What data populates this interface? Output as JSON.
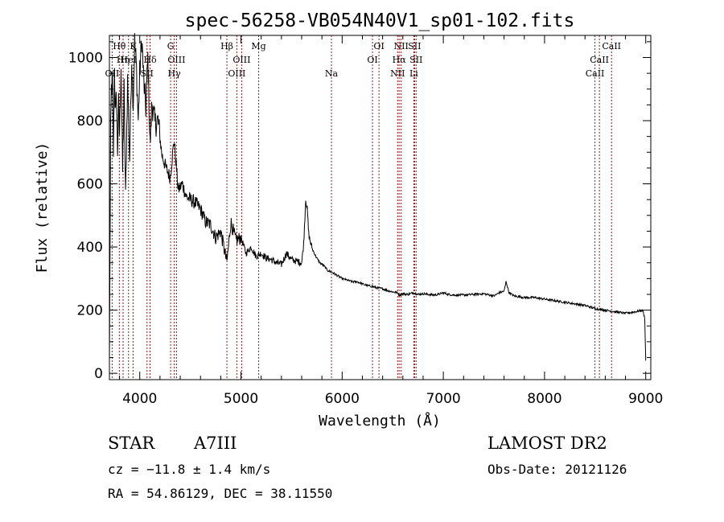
{
  "chart_data": {
    "type": "line",
    "title": "spec-56258-VB054N40V1_sp01-102.fits",
    "xlabel": "Wavelength (Å)",
    "ylabel": "Flux (relative)",
    "xlim": [
      3700,
      9050
    ],
    "ylim": [
      -20,
      1070
    ],
    "xticks": [
      4000,
      5000,
      6000,
      7000,
      8000,
      9000
    ],
    "yticks": [
      0,
      200,
      400,
      600,
      800,
      1000
    ],
    "xtick_labels": [
      "4000",
      "5000",
      "6000",
      "7000",
      "8000",
      "9000"
    ],
    "ytick_labels": [
      "0",
      "200",
      "400",
      "600",
      "800",
      "1000"
    ],
    "grid": false,
    "series": [
      {
        "name": "spectrum",
        "x": [
          3700,
          3705,
          3712,
          3720,
          3730,
          3740,
          3750,
          3760,
          3770,
          3780,
          3790,
          3800,
          3815,
          3830,
          3845,
          3860,
          3880,
          3900,
          3920,
          3935,
          3950,
          3968,
          3985,
          4000,
          4020,
          4040,
          4060,
          4080,
          4102,
          4120,
          4150,
          4180,
          4220,
          4260,
          4300,
          4340,
          4380,
          4420,
          4460,
          4500,
          4550,
          4600,
          4650,
          4700,
          4750,
          4800,
          4861,
          4900,
          4950,
          5000,
          5050,
          5100,
          5150,
          5200,
          5250,
          5300,
          5350,
          5400,
          5450,
          5500,
          5550,
          5600,
          5620,
          5640,
          5655,
          5670,
          5690,
          5710,
          5740,
          5780,
          5820,
          5860,
          5900,
          5950,
          6000,
          6050,
          6100,
          6150,
          6200,
          6250,
          6300,
          6350,
          6400,
          6450,
          6500,
          6550,
          6563,
          6600,
          6650,
          6700,
          6750,
          6800,
          6850,
          6900,
          6950,
          7000,
          7050,
          7100,
          7200,
          7300,
          7400,
          7500,
          7550,
          7600,
          7620,
          7650,
          7700,
          7800,
          7900,
          8000,
          8100,
          8200,
          8300,
          8400,
          8500,
          8600,
          8700,
          8800,
          8900,
          8970,
          8990,
          9000
        ],
        "y": [
          20,
          330,
          760,
          900,
          930,
          700,
          960,
          820,
          880,
          700,
          850,
          760,
          980,
          640,
          900,
          550,
          930,
          680,
          1000,
          850,
          1050,
          960,
          800,
          950,
          1060,
          920,
          840,
          1000,
          720,
          860,
          790,
          800,
          690,
          650,
          620,
          740,
          580,
          600,
          560,
          550,
          540,
          520,
          480,
          470,
          430,
          450,
          350,
          480,
          420,
          430,
          380,
          400,
          370,
          380,
          365,
          360,
          350,
          345,
          380,
          360,
          355,
          350,
          410,
          550,
          520,
          440,
          410,
          390,
          370,
          350,
          340,
          325,
          320,
          310,
          300,
          295,
          290,
          290,
          283,
          278,
          275,
          270,
          268,
          262,
          258,
          255,
          248,
          252,
          250,
          255,
          250,
          252,
          250,
          248,
          250,
          255,
          250,
          248,
          248,
          250,
          252,
          245,
          255,
          260,
          290,
          255,
          245,
          240,
          240,
          235,
          230,
          225,
          220,
          215,
          205,
          200,
          195,
          190,
          195,
          200,
          175,
          40
        ]
      }
    ],
    "lines": [
      {
        "label": "Hθ",
        "x": 3798,
        "row": 0
      },
      {
        "label": "OII",
        "x": 3727,
        "row": 2
      },
      {
        "label": "Hη",
        "x": 3835,
        "row": 1
      },
      {
        "label": "K",
        "x": 3934,
        "row": 0
      },
      {
        "label": "HeI",
        "x": 3889,
        "row": 1
      },
      {
        "label": "Hδ",
        "x": 4102,
        "row": 1
      },
      {
        "label": "SII",
        "x": 4072,
        "row": 2
      },
      {
        "label": "G",
        "x": 4305,
        "row": 0
      },
      {
        "label": "OIII",
        "x": 4363,
        "row": 1
      },
      {
        "label": "Hγ",
        "x": 4341,
        "row": 2
      },
      {
        "label": "Hβ",
        "x": 4861,
        "row": 0
      },
      {
        "label": "OIII",
        "x": 5007,
        "row": 1
      },
      {
        "label": "OIII",
        "x": 4959,
        "row": 2
      },
      {
        "label": "Mg",
        "x": 5175,
        "row": 0
      },
      {
        "label": "Na",
        "x": 5894,
        "row": 2
      },
      {
        "label": "OI",
        "x": 6364,
        "row": 0
      },
      {
        "label": "OI",
        "x": 6300,
        "row": 1
      },
      {
        "label": "NII",
        "x": 6583,
        "row": 0
      },
      {
        "label": "Hα",
        "x": 6563,
        "row": 1
      },
      {
        "label": "NII",
        "x": 6548,
        "row": 2
      },
      {
        "label": "SII",
        "x": 6716,
        "row": 0
      },
      {
        "label": "SII",
        "x": 6731,
        "row": 1
      },
      {
        "label": "Li",
        "x": 6708,
        "row": 2
      },
      {
        "label": "CaII",
        "x": 8662,
        "row": 0
      },
      {
        "label": "CaII",
        "x": 8542,
        "row": 1
      },
      {
        "label": "CaII",
        "x": 8498,
        "row": 2
      }
    ]
  },
  "info": {
    "class": "STAR",
    "subclass": "A7III",
    "survey": "LAMOST DR2",
    "cz": "cz = −11.8 ± 1.4 km/s",
    "obs_date": "Obs-Date: 20121126",
    "coords": "RA =  54.86129, DEC =  38.11550"
  },
  "colors": {
    "spectrum": "#000000",
    "line_markers": "#8b1a1a",
    "axes": "#000000"
  }
}
